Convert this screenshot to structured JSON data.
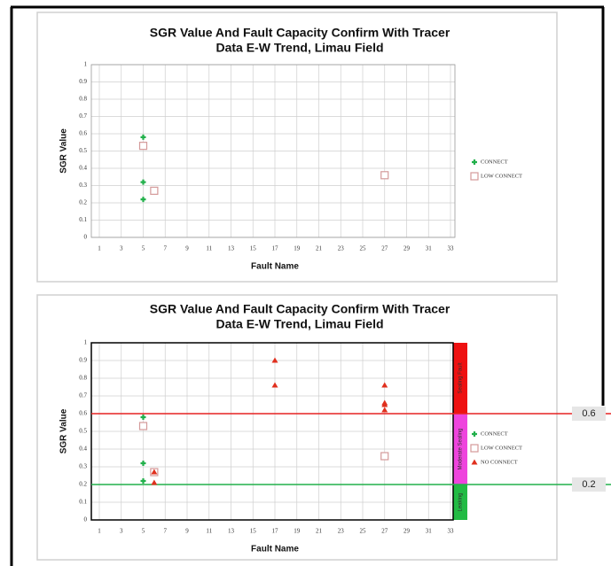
{
  "chart_data": [
    {
      "type": "scatter",
      "title": [
        "SGR Value And Fault Capacity Confirm With Tracer",
        "Data E-W Trend, Limau Field"
      ],
      "x_label": "Fault Name",
      "y_label": "SGR Value",
      "xlim": [
        1,
        33
      ],
      "xticks": [
        1,
        3,
        5,
        7,
        9,
        11,
        13,
        15,
        17,
        19,
        21,
        23,
        25,
        27,
        29,
        31,
        33
      ],
      "ylim": [
        0,
        1
      ],
      "yticks": [
        0,
        0.1,
        0.2,
        0.3,
        0.4,
        0.5,
        0.6,
        0.7,
        0.8,
        0.9,
        1
      ],
      "grid": true,
      "legend": "right",
      "series": [
        {
          "name": "CONNECT",
          "marker": "plus",
          "color": "#22b04b",
          "x": [
            5,
            5,
            5
          ],
          "values": [
            0.58,
            0.32,
            0.22
          ]
        },
        {
          "name": "LOW CONNECT",
          "marker": "square",
          "color": "#d49a9a",
          "x": [
            5,
            6,
            27
          ],
          "values": [
            0.53,
            0.27,
            0.36
          ]
        }
      ]
    },
    {
      "type": "scatter",
      "title": [
        "SGR Value And Fault Capacity Confirm With Tracer",
        "Data E-W Trend, Limau Field"
      ],
      "x_label": "Fault Name",
      "y_label": "SGR Value",
      "xlim": [
        1,
        33
      ],
      "xticks": [
        1,
        3,
        5,
        7,
        9,
        11,
        13,
        15,
        17,
        19,
        21,
        23,
        25,
        27,
        29,
        31,
        33
      ],
      "ylim": [
        0,
        1
      ],
      "yticks": [
        0,
        0.1,
        0.2,
        0.3,
        0.4,
        0.5,
        0.6,
        0.7,
        0.8,
        0.9,
        1
      ],
      "grid": true,
      "legend": "right",
      "series": [
        {
          "name": "CONNECT",
          "marker": "plus",
          "color": "#22b04b",
          "x": [
            5,
            5,
            5
          ],
          "values": [
            0.58,
            0.32,
            0.22
          ]
        },
        {
          "name": "LOW CONNECT",
          "marker": "square",
          "color": "#d49a9a",
          "x": [
            5,
            6,
            27
          ],
          "values": [
            0.53,
            0.27,
            0.36
          ]
        },
        {
          "name": "NO CONNECT",
          "marker": "triangle",
          "color": "#e0301e",
          "x": [
            6,
            6,
            17,
            17,
            27,
            27,
            27,
            27
          ],
          "values": [
            0.27,
            0.21,
            0.9,
            0.76,
            0.76,
            0.66,
            0.65,
            0.62
          ]
        }
      ],
      "zones": [
        {
          "label": "Sealing Fault",
          "from": 0.6,
          "to": 1,
          "color": "#ee1111"
        },
        {
          "label": "Moderate Sealing",
          "from": 0.2,
          "to": 0.6,
          "color": "#ee44dd"
        },
        {
          "label": "Leaking",
          "from": 0,
          "to": 0.2,
          "color": "#22bb44"
        }
      ],
      "thresholds": [
        {
          "value": 0.6,
          "color": "#e62222"
        },
        {
          "value": 0.2,
          "color": "#22b04b"
        }
      ]
    }
  ]
}
